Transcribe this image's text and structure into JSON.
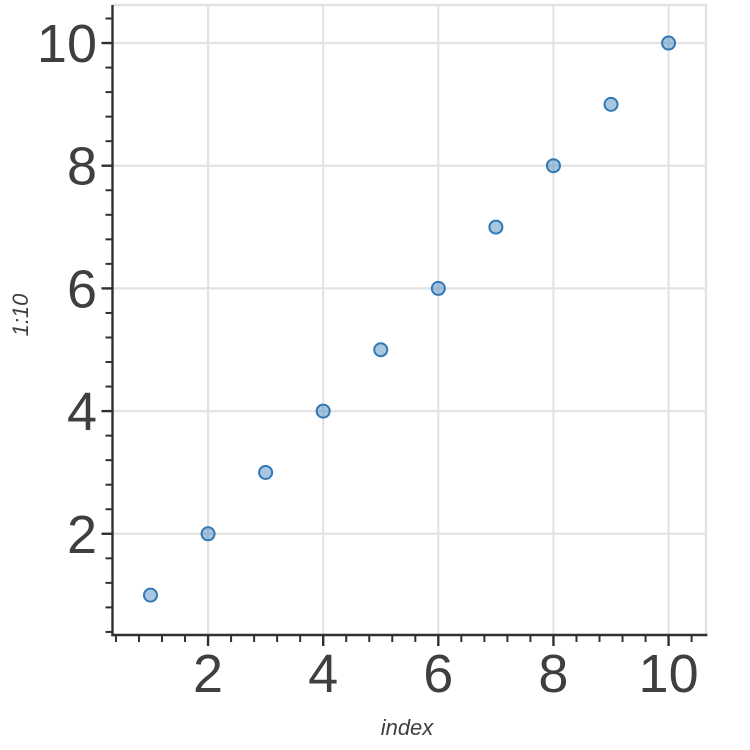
{
  "figure": {
    "background": "#ffffff"
  },
  "chart_data": {
    "type": "scatter",
    "title": "",
    "xlabel": "index",
    "ylabel": "1:10",
    "x": [
      1,
      2,
      3,
      4,
      5,
      6,
      7,
      8,
      9,
      10
    ],
    "y": [
      1,
      2,
      3,
      4,
      5,
      6,
      7,
      8,
      9,
      10
    ],
    "xlim": [
      0.34,
      10.65
    ],
    "ylim": [
      0.35,
      10.62
    ],
    "x_major_ticks": [
      2,
      4,
      6,
      8,
      10
    ],
    "y_major_ticks": [
      2,
      4,
      6,
      8,
      10
    ],
    "x_tick_labels": [
      "2",
      "4",
      "6",
      "8",
      "10"
    ],
    "y_tick_labels": [
      "2",
      "4",
      "6",
      "8",
      "10"
    ],
    "minor_tick_interval": 0.4,
    "grid": "major-only",
    "legend": "none",
    "marker": {
      "shape": "circle",
      "fill": "#3178b6",
      "fill_opacity": 0.42,
      "stroke": "#3178b6"
    },
    "colors": {
      "axis_line": "#303030",
      "tick": "#303030",
      "grid_line": "#e3e3e3",
      "panel_border": "#e3e3e3",
      "tick_label": "#3f3f3f",
      "axis_title": "#3f3f3f"
    }
  }
}
